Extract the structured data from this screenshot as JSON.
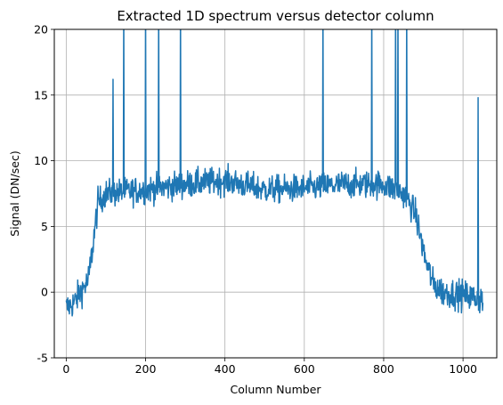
{
  "chart_data": {
    "type": "line",
    "title": "Extracted 1D spectrum versus detector column",
    "xlabel": "Column Number",
    "ylabel": "Signal (DN/sec)",
    "xlim": [
      -30,
      1085
    ],
    "ylim": [
      -5,
      20
    ],
    "xticks": [
      0,
      200,
      400,
      600,
      800,
      1000
    ],
    "yticks": [
      -5,
      0,
      5,
      10,
      15,
      20
    ],
    "grid": true,
    "series": [
      {
        "color": "#1f77b4",
        "x_start": 0,
        "x_end": 1050,
        "profile": [
          [
            0,
            -1.2
          ],
          [
            20,
            -0.8
          ],
          [
            40,
            0.2
          ],
          [
            55,
            0.8
          ],
          [
            65,
            3.0
          ],
          [
            80,
            6.8
          ],
          [
            100,
            7.5
          ],
          [
            200,
            7.8
          ],
          [
            300,
            8.2
          ],
          [
            400,
            8.5
          ],
          [
            500,
            7.8
          ],
          [
            600,
            7.9
          ],
          [
            700,
            8.2
          ],
          [
            800,
            8.2
          ],
          [
            850,
            7.5
          ],
          [
            880,
            6.0
          ],
          [
            905,
            2.5
          ],
          [
            925,
            0.6
          ],
          [
            950,
            0.0
          ],
          [
            1000,
            -0.2
          ],
          [
            1050,
            -0.6
          ]
        ],
        "spikes": [
          {
            "x": 118,
            "y": 16.2
          },
          {
            "x": 145,
            "y": 22
          },
          {
            "x": 200,
            "y": 22
          },
          {
            "x": 233,
            "y": 22
          },
          {
            "x": 288,
            "y": 22
          },
          {
            "x": 647,
            "y": 22
          },
          {
            "x": 770,
            "y": 22
          },
          {
            "x": 830,
            "y": 22
          },
          {
            "x": 836,
            "y": 22
          },
          {
            "x": 858,
            "y": 22
          },
          {
            "x": 1038,
            "y": 14.8
          }
        ]
      }
    ]
  }
}
